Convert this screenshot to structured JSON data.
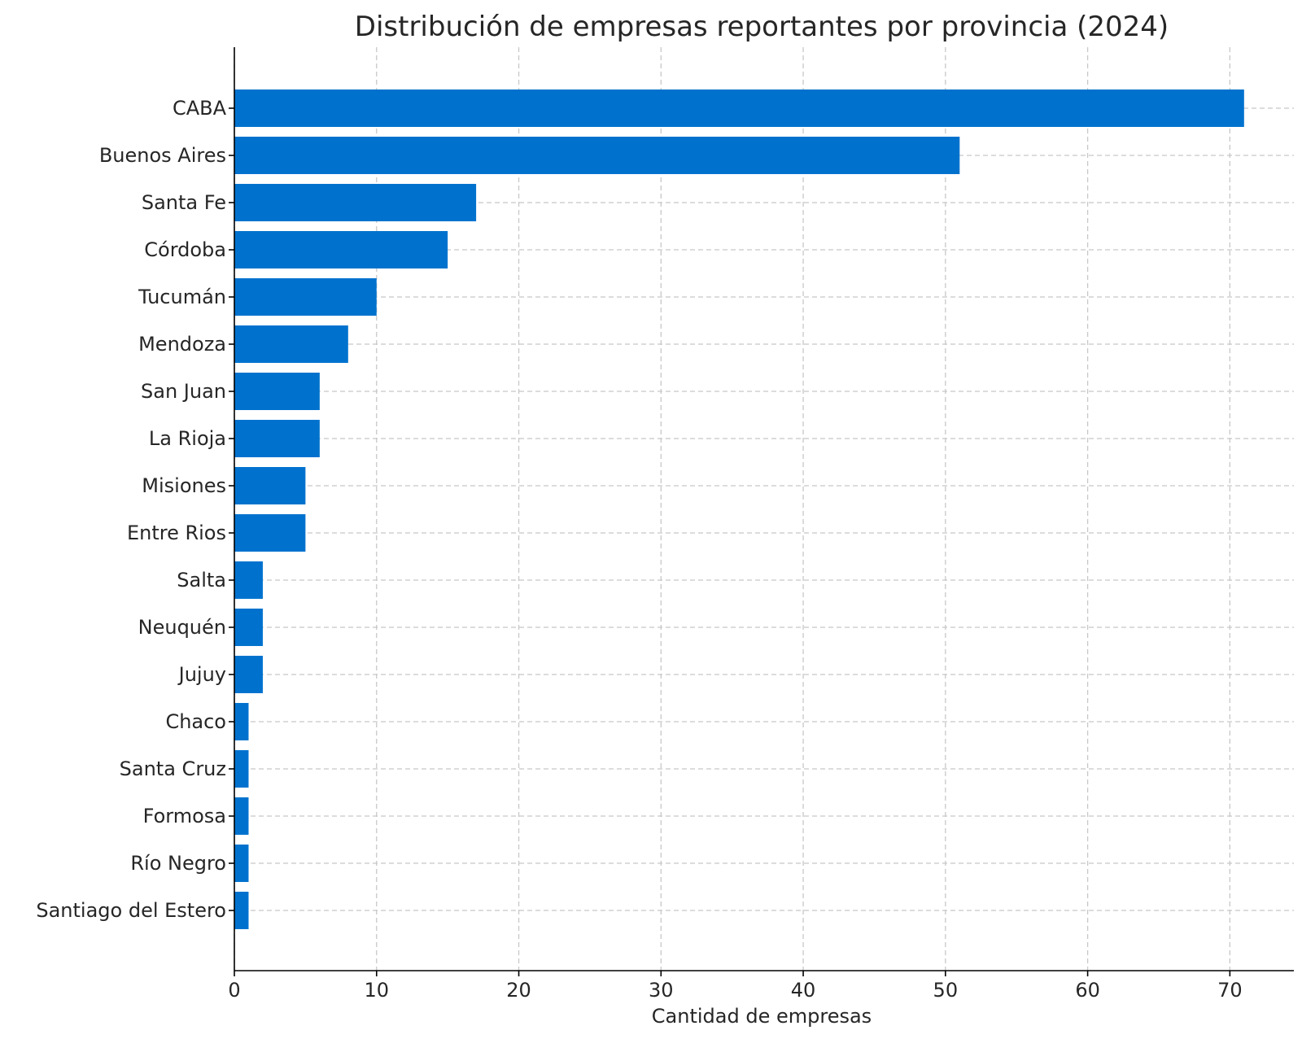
{
  "chart_data": {
    "type": "bar",
    "orientation": "horizontal",
    "title": "Distribución de empresas reportantes por provincia (2024)",
    "xlabel": "Cantidad de empresas",
    "ylabel": "",
    "xlim": [
      0,
      74.5
    ],
    "x_ticks": [
      0,
      10,
      20,
      30,
      40,
      50,
      60,
      70
    ],
    "grid": true,
    "bar_color": "#0072CE",
    "categories": [
      "CABA",
      "Buenos Aires",
      "Santa Fe",
      "Córdoba",
      "Tucumán",
      "Mendoza",
      "San Juan",
      "La Rioja",
      "Misiones",
      "Entre Rios",
      "Salta",
      "Neuquén",
      "Jujuy",
      "Chaco",
      "Santa Cruz",
      "Formosa",
      "Río Negro",
      "Santiago del Estero"
    ],
    "values": [
      71,
      51,
      17,
      15,
      10,
      8,
      6,
      6,
      5,
      5,
      2,
      2,
      2,
      1,
      1,
      1,
      1,
      1
    ]
  }
}
